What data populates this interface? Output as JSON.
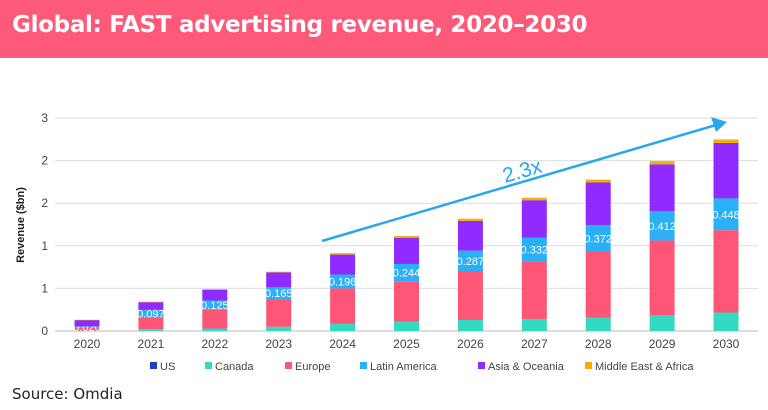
{
  "header": {
    "title": "Global: FAST advertising revenue, 2020–2030"
  },
  "footer": {
    "source": "Source: Omdia"
  },
  "chart_data": {
    "type": "bar",
    "stacked": true,
    "title": "Global: FAST advertising revenue, 2020–2030",
    "xlabel": "",
    "ylabel": "Revenue ($bn)",
    "ylim": [
      0,
      3
    ],
    "yticks": [
      0,
      0.6,
      1.2,
      1.8,
      2.4,
      3.0
    ],
    "ytick_labels": [
      "0",
      "1",
      "1",
      "2",
      "2",
      "3"
    ],
    "grid": true,
    "legend_placement": "bottom",
    "categories": [
      "2020",
      "2021",
      "2022",
      "2023",
      "2024",
      "2025",
      "2026",
      "2027",
      "2028",
      "2029",
      "2030"
    ],
    "series": [
      {
        "name": "US",
        "color": "#1f3fbf",
        "values": [
          0,
          0,
          0,
          0,
          0,
          0,
          0,
          0,
          0,
          0,
          0
        ]
      },
      {
        "name": "Canada",
        "color": "#33d9c1",
        "values": [
          0.005,
          0.025,
          0.035,
          0.06,
          0.1,
          0.13,
          0.155,
          0.17,
          0.19,
          0.225,
          0.26
        ]
      },
      {
        "name": "Europe",
        "color": "#ff5577",
        "values": [
          0.04,
          0.175,
          0.27,
          0.39,
          0.5,
          0.57,
          0.69,
          0.81,
          0.93,
          1.05,
          1.16
        ]
      },
      {
        "name": "Latin America",
        "color": "#2bb0f5",
        "values": [
          0.02,
          0.097,
          0.125,
          0.165,
          0.196,
          0.244,
          0.287,
          0.332,
          0.372,
          0.412,
          0.448
        ],
        "data_labels": [
          "0.020",
          "0.097",
          "0.125",
          "0.165",
          "0.196",
          "0.244",
          "0.287",
          "0.332",
          "0.372",
          "0.412",
          "0.448"
        ]
      },
      {
        "name": "Asia & Oceania",
        "color": "#8f2bff",
        "values": [
          0.09,
          0.11,
          0.15,
          0.21,
          0.28,
          0.37,
          0.42,
          0.53,
          0.6,
          0.66,
          0.78
        ]
      },
      {
        "name": "Middle East & Africa",
        "color": "#f0b000",
        "values": [
          0.003,
          0.005,
          0.01,
          0.01,
          0.02,
          0.025,
          0.03,
          0.035,
          0.04,
          0.045,
          0.05
        ]
      }
    ],
    "annotation": {
      "text": "2.3x",
      "type": "arrow",
      "color": "#2aa6ef",
      "from_category": "2024",
      "to_category": "2030"
    }
  }
}
